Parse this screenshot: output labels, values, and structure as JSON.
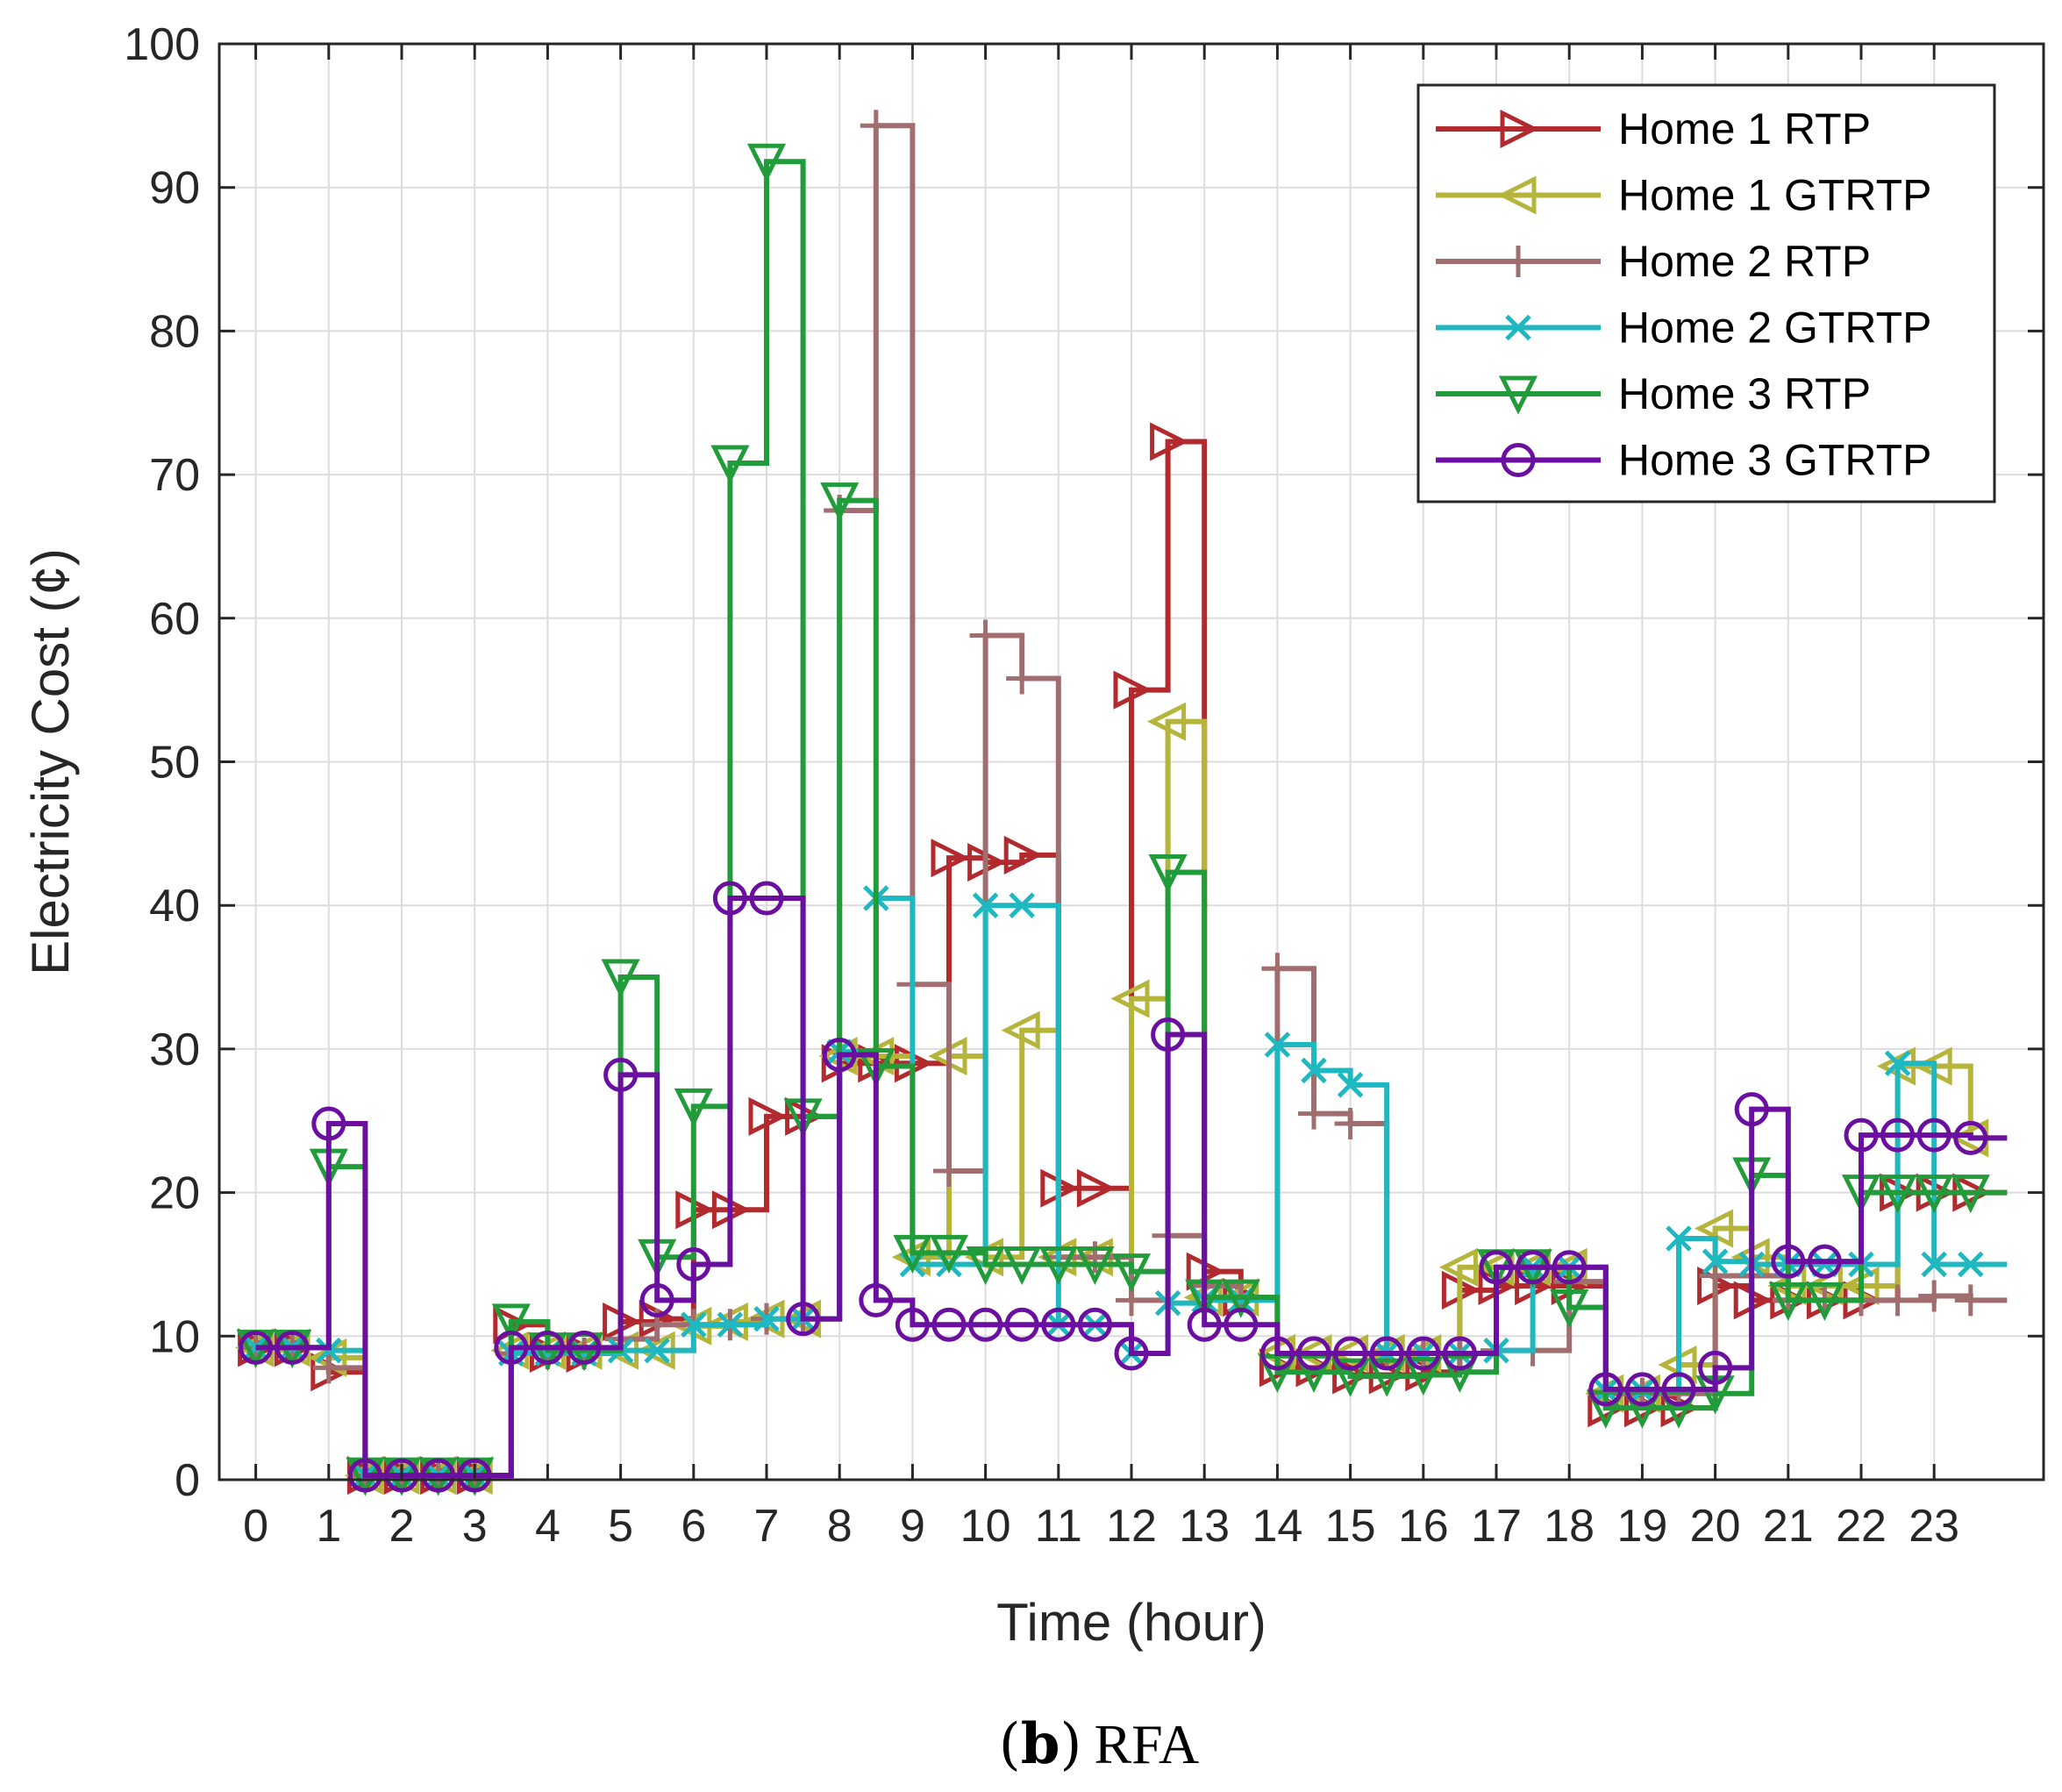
{
  "chart_data": {
    "type": "line",
    "step": true,
    "title": "",
    "xlabel": "Time (hour)",
    "ylabel": "Electricity Cost (¢)",
    "xlim": [
      -0.5,
      24.5
    ],
    "ylim": [
      0,
      100
    ],
    "xticks": [
      0,
      1,
      2,
      3,
      4,
      5,
      6,
      7,
      8,
      9,
      10,
      11,
      12,
      13,
      14,
      15,
      16,
      17,
      18,
      19,
      20,
      21,
      22,
      23
    ],
    "yticks": [
      0,
      10,
      20,
      30,
      40,
      50,
      60,
      70,
      80,
      90,
      100
    ],
    "grid": true,
    "legend_position": "top-right",
    "x": [
      0,
      0.5,
      1,
      1.5,
      2,
      2.5,
      3,
      3.5,
      4,
      4.5,
      5,
      5.5,
      6,
      6.5,
      7,
      7.5,
      8,
      8.5,
      9,
      9.5,
      10,
      10.5,
      11,
      11.5,
      12,
      12.5,
      13,
      13.5,
      14,
      14.5,
      15,
      15.5,
      16,
      16.5,
      17,
      17.5,
      18,
      18.5,
      19,
      19.5,
      20,
      20.5,
      21,
      21.5,
      22,
      22.5,
      23,
      23.5
    ],
    "series": [
      {
        "name": "Home 1 RTP",
        "color": "#b2292e",
        "marker": "triangle-right",
        "values": [
          9.2,
          9.2,
          7.5,
          0.3,
          0.3,
          0.3,
          0.3,
          10.8,
          8.8,
          8.8,
          11,
          11.2,
          18.8,
          18.8,
          25.3,
          25.3,
          29,
          29,
          29,
          43.3,
          43,
          43.5,
          20.3,
          20.3,
          55,
          72.3,
          14.5,
          12.7,
          7.8,
          7.8,
          7.3,
          7.3,
          7.5,
          13.2,
          13.5,
          13.5,
          13.5,
          5,
          5,
          5,
          13.5,
          12.5,
          12.5,
          12.5,
          12.5,
          20,
          20,
          20
        ]
      },
      {
        "name": "Home 1 GTRTP",
        "color": "#b5b53b",
        "marker": "triangle-left",
        "values": [
          9.2,
          9.2,
          8.5,
          0.3,
          0.3,
          0.3,
          0.3,
          9,
          9,
          9,
          9,
          9,
          10.7,
          11,
          11.2,
          11.2,
          29.5,
          29.5,
          15.5,
          29.5,
          15.5,
          31.3,
          15.5,
          15.5,
          33.5,
          52.8,
          12.7,
          12.7,
          8.8,
          8.8,
          8.8,
          8.8,
          8.8,
          14.8,
          14.8,
          14.8,
          14.8,
          6,
          6,
          8,
          17.5,
          15.5,
          13.5,
          13.5,
          13.5,
          28.8,
          28.8,
          23.8
        ]
      },
      {
        "name": "Home 2 RTP",
        "color": "#a06e6e",
        "marker": "plus",
        "values": [
          9.2,
          9.2,
          7.8,
          0.3,
          0.3,
          0.3,
          0.3,
          8.8,
          8.8,
          8.8,
          9.8,
          10.8,
          10.8,
          10.8,
          11.2,
          11.2,
          67.5,
          94.3,
          34.5,
          21.5,
          58.8,
          55.8,
          15.5,
          15.5,
          12.5,
          17,
          13.5,
          12.7,
          35.6,
          25.5,
          24.8,
          8.8,
          8.8,
          8.8,
          9,
          9,
          13.8,
          6,
          6,
          6,
          14.2,
          14.2,
          12.5,
          12.5,
          12.5,
          12.5,
          12.8,
          12.5
        ]
      },
      {
        "name": "Home 2 GTRTP",
        "color": "#20b8c0",
        "marker": "cross",
        "values": [
          9.2,
          9.2,
          9,
          0.3,
          0.3,
          0.3,
          0.3,
          8.8,
          8.8,
          8.8,
          9,
          9,
          10.8,
          10.8,
          11.2,
          11.2,
          29.8,
          40.5,
          15,
          15,
          40,
          40,
          10.8,
          10.8,
          8.8,
          12.3,
          12.5,
          12.5,
          30.3,
          28.5,
          27.5,
          8.8,
          8.8,
          8.8,
          9,
          14.8,
          14.8,
          6.2,
          6.2,
          16.8,
          15.2,
          15,
          15,
          15,
          15,
          29,
          15,
          15
        ]
      },
      {
        "name": "Home 3 RTP",
        "color": "#229b3a",
        "marker": "triangle-down",
        "values": [
          9.2,
          9.2,
          21.8,
          0.3,
          0.3,
          0.3,
          0.3,
          11,
          9,
          9,
          35,
          15.5,
          26,
          70.8,
          91.8,
          25.3,
          68.2,
          28.8,
          15.8,
          15.8,
          15,
          15,
          15,
          15,
          14.5,
          42.3,
          12.7,
          12.7,
          7.5,
          7.5,
          7.2,
          7.2,
          7.3,
          7.5,
          14.8,
          14.8,
          12,
          5,
          5,
          5,
          6,
          21.2,
          12.5,
          12.5,
          20,
          20,
          20,
          20
        ]
      },
      {
        "name": "Home 3 GTRTP",
        "color": "#6a0fa0",
        "marker": "circle",
        "values": [
          9.2,
          9.2,
          24.8,
          0.3,
          0.3,
          0.3,
          0.3,
          9.2,
          9.2,
          9.2,
          28.2,
          12.5,
          15,
          40.5,
          40.5,
          11.2,
          29.6,
          12.5,
          10.8,
          10.8,
          10.8,
          10.8,
          10.8,
          10.8,
          8.8,
          31,
          10.8,
          10.8,
          8.8,
          8.8,
          8.8,
          8.8,
          8.8,
          8.8,
          14.8,
          14.8,
          14.8,
          6.3,
          6.3,
          6.3,
          7.8,
          25.8,
          15.2,
          15.2,
          24,
          24,
          24,
          23.8
        ]
      }
    ]
  },
  "caption": {
    "paren_open": "(",
    "letter": "b",
    "paren_close": ")",
    "text": "RFA"
  }
}
